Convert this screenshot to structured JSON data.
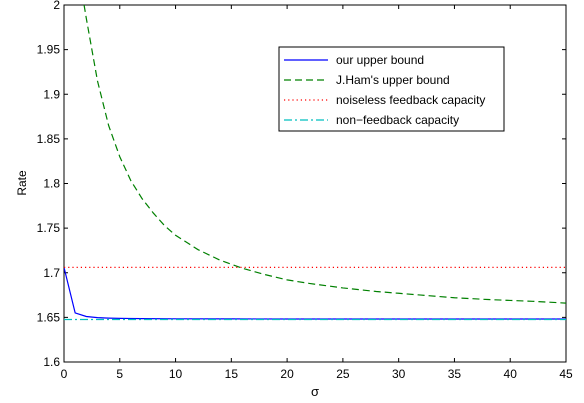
{
  "chart_data": {
    "type": "line",
    "title": "",
    "xlabel": "σ",
    "ylabel": "Rate",
    "xlim": [
      0,
      45
    ],
    "ylim": [
      1.6,
      2.0
    ],
    "xticks": [
      0,
      5,
      10,
      15,
      20,
      25,
      30,
      35,
      40,
      45
    ],
    "yticks": [
      1.6,
      1.65,
      1.7,
      1.75,
      1.8,
      1.85,
      1.9,
      1.95,
      2.0
    ],
    "xtick_labels": [
      "0",
      "5",
      "10",
      "15",
      "20",
      "25",
      "30",
      "35",
      "40",
      "45"
    ],
    "ytick_labels": [
      "1.6",
      "1.65",
      "1.7",
      "1.75",
      "1.8",
      "1.85",
      "1.9",
      "1.95",
      "2"
    ],
    "grid": false,
    "legend_position": "top-right",
    "series": [
      {
        "name": "our upper bound",
        "color": "#0000ff",
        "style": "solid",
        "x": [
          0,
          1,
          2,
          3,
          4,
          5,
          7,
          10,
          15,
          20,
          25,
          30,
          35,
          40,
          45
        ],
        "y": [
          1.706,
          1.655,
          1.651,
          1.6497,
          1.6492,
          1.6489,
          1.6486,
          1.6484,
          1.6483,
          1.6482,
          1.6482,
          1.6482,
          1.6482,
          1.6482,
          1.6482
        ]
      },
      {
        "name": "J.Ham's upper bound",
        "color": "#008000",
        "style": "dashed",
        "x": [
          1.8,
          2,
          3,
          4,
          5,
          6,
          7,
          8,
          9,
          10,
          12,
          14,
          16,
          18,
          20,
          22,
          25,
          28,
          30,
          32,
          35,
          38,
          40,
          42,
          45
        ],
        "y": [
          2.0,
          1.985,
          1.915,
          1.865,
          1.83,
          1.803,
          1.783,
          1.767,
          1.753,
          1.742,
          1.726,
          1.714,
          1.705,
          1.698,
          1.692,
          1.688,
          1.683,
          1.679,
          1.677,
          1.675,
          1.672,
          1.67,
          1.669,
          1.668,
          1.666
        ]
      },
      {
        "name": "noiseless feedback capacity",
        "color": "#ff0000",
        "style": "dotted",
        "x": [
          0,
          45
        ],
        "y": [
          1.706,
          1.706
        ]
      },
      {
        "name": "non−feedback capacity",
        "color": "#00bfbf",
        "style": "dashdot",
        "x": [
          0,
          45
        ],
        "y": [
          1.6476,
          1.6476
        ]
      }
    ]
  }
}
